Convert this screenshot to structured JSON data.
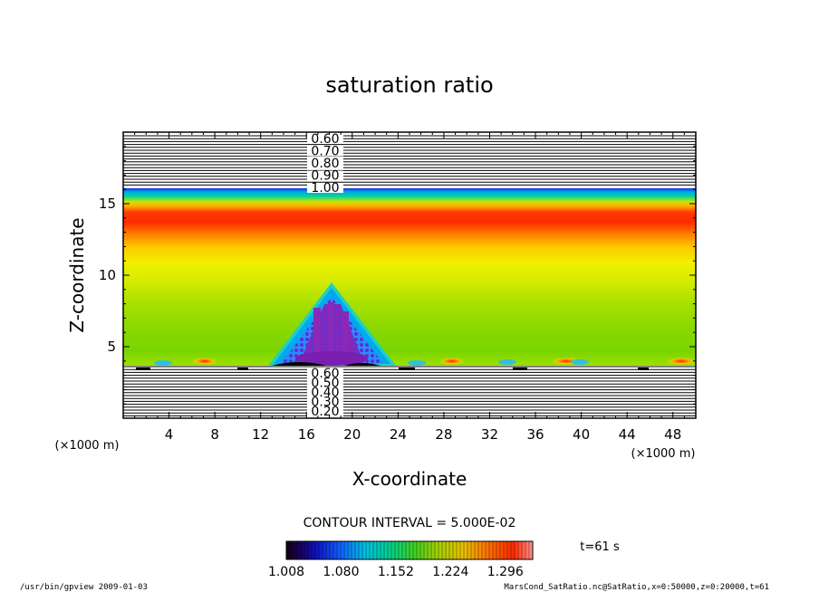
{
  "chart_data": {
    "type": "heatmap",
    "title": "saturation ratio",
    "xlabel": "X-coordinate",
    "ylabel": "Z-coordinate",
    "x_unit": "(×1000 m)",
    "y_unit": "(×1000 m)",
    "xlim": [
      0,
      50
    ],
    "ylim": [
      0,
      20
    ],
    "x_ticks": [
      "4",
      "8",
      "12",
      "16",
      "20",
      "24",
      "28",
      "32",
      "36",
      "40",
      "44",
      "48"
    ],
    "y_ticks": [
      "5",
      "10",
      "15"
    ],
    "upper_contour_labels": [
      "0.60",
      "0.70",
      "0.80",
      "0.90",
      "1.00"
    ],
    "lower_contour_labels": [
      "0.60",
      "0.50",
      "0.40",
      "0.30",
      "0.20"
    ],
    "contour_interval_text": "CONTOUR INTERVAL = 5.000E-02",
    "colorbar": {
      "min": 1.008,
      "max": 1.332,
      "tick_labels": [
        "1.008",
        "1.080",
        "1.152",
        "1.224",
        "1.296"
      ]
    },
    "time_label": "t=61 s",
    "footer_left": "/usr/bin/gpview   2009-01-03",
    "footer_right": "MarsCond_SatRatio.nc@SatRatio,x=0:50000,z=0:20000,t=61",
    "colors": {
      "low": "#0000a0",
      "mid": "#7ad400",
      "high": "#ff3000",
      "cloud": "#7a1fb0"
    }
  }
}
